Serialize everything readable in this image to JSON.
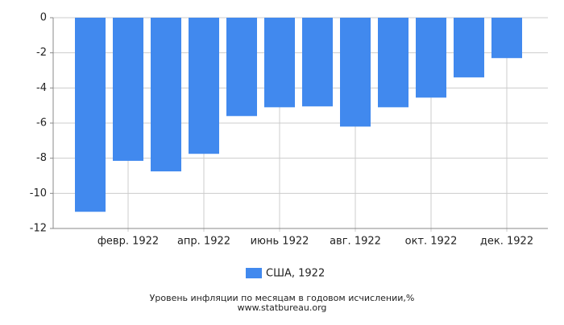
{
  "chart_data": {
    "type": "bar",
    "title": "Уровень инфляции по месяцам в годовом исчислении,%",
    "source": "www.statbureau.org",
    "categories": [
      null,
      "февр. 1922",
      null,
      "апр. 1922",
      null,
      "июнь 1922",
      null,
      "авг. 1922",
      null,
      "окт. 1922",
      null,
      "дек. 1922"
    ],
    "series": [
      {
        "name": "США, 1922",
        "color": "#4189ee",
        "values": [
          -11.05,
          -8.15,
          -8.75,
          -7.75,
          -5.6,
          -5.1,
          -5.05,
          -6.2,
          -5.1,
          -4.55,
          -3.4,
          -2.3
        ]
      }
    ],
    "ylim": [
      -12,
      0
    ],
    "yticks": [
      0,
      -2,
      -4,
      -6,
      -8,
      -10,
      -12
    ],
    "grid": true,
    "legend": "bottom"
  }
}
